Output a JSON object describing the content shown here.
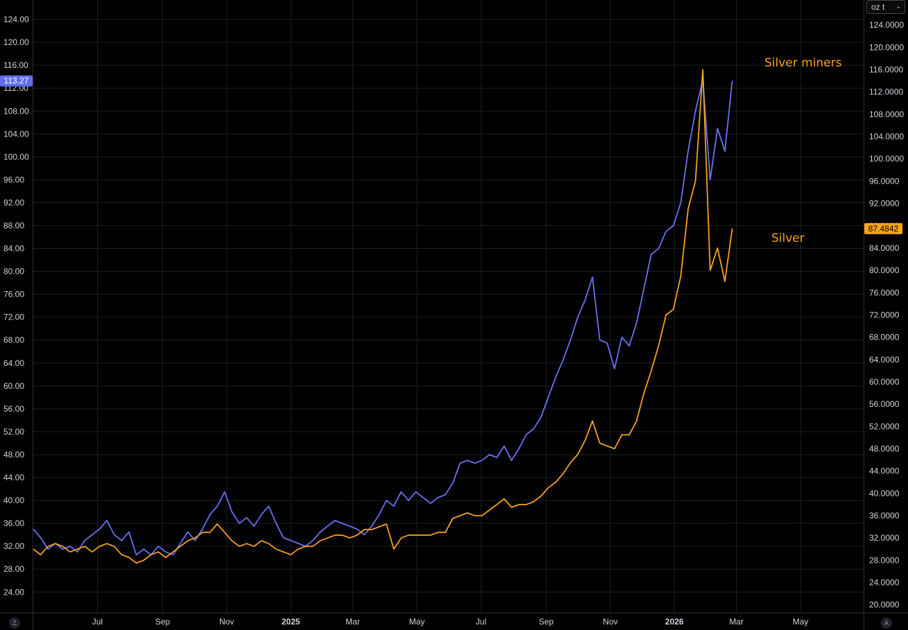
{
  "ui": {
    "unit_select_value": "oz t",
    "left_corner_label": "Z",
    "right_corner_label": "A",
    "chevron_icon": "chevron-down-icon"
  },
  "colors": {
    "background": "#000000",
    "grid": "#1c1f26",
    "miners": "#6872f2",
    "silver": "#f7a21b",
    "miners_price_badge": "#5f6ef0",
    "silver_price_badge": "#f7a21b"
  },
  "chart_data": {
    "type": "line",
    "annotations": [
      {
        "text": "Silver miners",
        "series": "miners"
      },
      {
        "text": "Silver",
        "series": "silver"
      }
    ],
    "left_axis": {
      "ticks": [
        "124.00",
        "120.00",
        "116.00",
        "112.00",
        "108.00",
        "104.00",
        "100.00",
        "96.00",
        "92.00",
        "88.00",
        "84.00",
        "80.00",
        "76.00",
        "72.00",
        "68.00",
        "64.00",
        "60.00",
        "56.00",
        "52.00",
        "48.00",
        "44.00",
        "40.00",
        "36.00",
        "32.00",
        "28.00",
        "24.00"
      ],
      "ylim": [
        20.4,
        127.4
      ],
      "last_value_label": "113.27"
    },
    "right_axis": {
      "ticks": [
        "124.0000",
        "120.0000",
        "116.0000",
        "112.0000",
        "108.0000",
        "104.0000",
        "100.0000",
        "96.0000",
        "92.0000",
        "88.0000",
        "84.0000",
        "80.0000",
        "76.0000",
        "72.0000",
        "68.0000",
        "64.0000",
        "60.0000",
        "56.0000",
        "52.0000",
        "48.0000",
        "44.0000",
        "40.0000",
        "36.0000",
        "32.0000",
        "28.0000",
        "24.0000",
        "20.0000"
      ],
      "ylim": [
        18.6,
        128.5
      ],
      "last_value_label": "87.4842"
    },
    "x_axis": {
      "range": [
        "2024-05-01",
        "2026-06-30"
      ],
      "ticks": [
        {
          "label": "Jul",
          "date": "2024-07-01",
          "bold": false
        },
        {
          "label": "Sep",
          "date": "2024-09-01",
          "bold": false
        },
        {
          "label": "Nov",
          "date": "2024-11-01",
          "bold": false
        },
        {
          "label": "2025",
          "date": "2025-01-01",
          "bold": true
        },
        {
          "label": "Mar",
          "date": "2025-03-01",
          "bold": false
        },
        {
          "label": "May",
          "date": "2025-05-01",
          "bold": false
        },
        {
          "label": "Jul",
          "date": "2025-07-01",
          "bold": false
        },
        {
          "label": "Sep",
          "date": "2025-09-01",
          "bold": false
        },
        {
          "label": "Nov",
          "date": "2025-11-01",
          "bold": false
        },
        {
          "label": "2026",
          "date": "2026-01-01",
          "bold": true
        },
        {
          "label": "Mar",
          "date": "2026-03-01",
          "bold": false
        },
        {
          "label": "May",
          "date": "2026-05-01",
          "bold": false
        }
      ]
    },
    "series": [
      {
        "key": "miners",
        "axis": "left",
        "points": [
          [
            "2024-05-01",
            35.0
          ],
          [
            "2024-05-08",
            33.5
          ],
          [
            "2024-05-15",
            31.5
          ],
          [
            "2024-05-22",
            32.5
          ],
          [
            "2024-05-29",
            31.5
          ],
          [
            "2024-06-05",
            32.0
          ],
          [
            "2024-06-12",
            31.0
          ],
          [
            "2024-06-19",
            33.0
          ],
          [
            "2024-06-26",
            34.0
          ],
          [
            "2024-07-03",
            35.0
          ],
          [
            "2024-07-10",
            36.5
          ],
          [
            "2024-07-17",
            34.0
          ],
          [
            "2024-07-24",
            33.0
          ],
          [
            "2024-07-31",
            34.5
          ],
          [
            "2024-08-07",
            30.5
          ],
          [
            "2024-08-14",
            31.5
          ],
          [
            "2024-08-21",
            30.5
          ],
          [
            "2024-08-28",
            32.0
          ],
          [
            "2024-09-04",
            31.0
          ],
          [
            "2024-09-11",
            30.5
          ],
          [
            "2024-09-18",
            32.5
          ],
          [
            "2024-09-25",
            34.5
          ],
          [
            "2024-10-02",
            33.0
          ],
          [
            "2024-10-09",
            35.0
          ],
          [
            "2024-10-16",
            37.5
          ],
          [
            "2024-10-23",
            39.0
          ],
          [
            "2024-10-30",
            41.5
          ],
          [
            "2024-11-06",
            38.0
          ],
          [
            "2024-11-13",
            36.0
          ],
          [
            "2024-11-20",
            37.0
          ],
          [
            "2024-11-27",
            35.5
          ],
          [
            "2024-12-04",
            37.5
          ],
          [
            "2024-12-11",
            39.0
          ],
          [
            "2024-12-18",
            36.0
          ],
          [
            "2024-12-25",
            33.5
          ],
          [
            "2025-01-01",
            33.0
          ],
          [
            "2025-01-08",
            32.5
          ],
          [
            "2025-01-15",
            32.0
          ],
          [
            "2025-01-22",
            33.0
          ],
          [
            "2025-01-29",
            34.5
          ],
          [
            "2025-02-05",
            35.5
          ],
          [
            "2025-02-12",
            36.5
          ],
          [
            "2025-02-19",
            36.0
          ],
          [
            "2025-02-26",
            35.5
          ],
          [
            "2025-03-05",
            35.0
          ],
          [
            "2025-03-12",
            34.0
          ],
          [
            "2025-03-19",
            35.5
          ],
          [
            "2025-03-26",
            37.5
          ],
          [
            "2025-04-02",
            40.0
          ],
          [
            "2025-04-09",
            39.0
          ],
          [
            "2025-04-16",
            41.5
          ],
          [
            "2025-04-23",
            40.0
          ],
          [
            "2025-04-30",
            41.5
          ],
          [
            "2025-05-07",
            40.5
          ],
          [
            "2025-05-14",
            39.5
          ],
          [
            "2025-05-21",
            40.5
          ],
          [
            "2025-05-28",
            41.0
          ],
          [
            "2025-06-04",
            43.0
          ],
          [
            "2025-06-11",
            46.5
          ],
          [
            "2025-06-18",
            47.0
          ],
          [
            "2025-06-25",
            46.5
          ],
          [
            "2025-07-02",
            47.0
          ],
          [
            "2025-07-09",
            48.0
          ],
          [
            "2025-07-16",
            47.5
          ],
          [
            "2025-07-23",
            49.5
          ],
          [
            "2025-07-30",
            47.0
          ],
          [
            "2025-08-06",
            49.0
          ],
          [
            "2025-08-13",
            51.5
          ],
          [
            "2025-08-20",
            52.5
          ],
          [
            "2025-08-27",
            54.5
          ],
          [
            "2025-09-03",
            58.0
          ],
          [
            "2025-09-10",
            61.5
          ],
          [
            "2025-09-17",
            64.5
          ],
          [
            "2025-09-24",
            68.0
          ],
          [
            "2025-10-01",
            72.0
          ],
          [
            "2025-10-08",
            75.0
          ],
          [
            "2025-10-15",
            79.0
          ],
          [
            "2025-10-22",
            68.0
          ],
          [
            "2025-10-29",
            67.5
          ],
          [
            "2025-11-05",
            63.0
          ],
          [
            "2025-11-12",
            68.5
          ],
          [
            "2025-11-19",
            67.0
          ],
          [
            "2025-11-26",
            71.0
          ],
          [
            "2025-12-03",
            77.0
          ],
          [
            "2025-12-10",
            83.0
          ],
          [
            "2025-12-17",
            84.0
          ],
          [
            "2025-12-24",
            87.0
          ],
          [
            "2025-12-31",
            88.0
          ],
          [
            "2026-01-07",
            92.0
          ],
          [
            "2026-01-14",
            101.0
          ],
          [
            "2026-01-21",
            108.0
          ],
          [
            "2026-01-28",
            113.5
          ],
          [
            "2026-02-04",
            96.0
          ],
          [
            "2026-02-11",
            105.0
          ],
          [
            "2026-02-18",
            101.0
          ],
          [
            "2026-02-25",
            113.27
          ]
        ]
      },
      {
        "key": "silver",
        "axis": "right",
        "points": [
          [
            "2024-05-01",
            30.0
          ],
          [
            "2024-05-08",
            29.0
          ],
          [
            "2024-05-15",
            30.5
          ],
          [
            "2024-05-22",
            31.0
          ],
          [
            "2024-05-29",
            30.5
          ],
          [
            "2024-06-05",
            29.5
          ],
          [
            "2024-06-12",
            30.0
          ],
          [
            "2024-06-19",
            30.5
          ],
          [
            "2024-06-26",
            29.5
          ],
          [
            "2024-07-03",
            30.5
          ],
          [
            "2024-07-10",
            31.0
          ],
          [
            "2024-07-17",
            30.5
          ],
          [
            "2024-07-24",
            29.0
          ],
          [
            "2024-07-31",
            28.5
          ],
          [
            "2024-08-07",
            27.5
          ],
          [
            "2024-08-14",
            28.0
          ],
          [
            "2024-08-21",
            29.0
          ],
          [
            "2024-08-28",
            29.5
          ],
          [
            "2024-09-04",
            28.5
          ],
          [
            "2024-09-11",
            29.5
          ],
          [
            "2024-09-18",
            30.5
          ],
          [
            "2024-09-25",
            31.5
          ],
          [
            "2024-10-02",
            32.0
          ],
          [
            "2024-10-09",
            33.0
          ],
          [
            "2024-10-16",
            33.0
          ],
          [
            "2024-10-23",
            34.5
          ],
          [
            "2024-10-30",
            33.0
          ],
          [
            "2024-11-06",
            31.5
          ],
          [
            "2024-11-13",
            30.5
          ],
          [
            "2024-11-20",
            31.0
          ],
          [
            "2024-11-27",
            30.5
          ],
          [
            "2024-12-04",
            31.5
          ],
          [
            "2024-12-11",
            31.0
          ],
          [
            "2024-12-18",
            30.0
          ],
          [
            "2024-12-25",
            29.5
          ],
          [
            "2025-01-01",
            29.0
          ],
          [
            "2025-01-08",
            30.0
          ],
          [
            "2025-01-15",
            30.5
          ],
          [
            "2025-01-22",
            30.5
          ],
          [
            "2025-01-29",
            31.5
          ],
          [
            "2025-02-05",
            32.0
          ],
          [
            "2025-02-12",
            32.5
          ],
          [
            "2025-02-19",
            32.5
          ],
          [
            "2025-02-26",
            32.0
          ],
          [
            "2025-03-05",
            32.5
          ],
          [
            "2025-03-12",
            33.5
          ],
          [
            "2025-03-19",
            33.5
          ],
          [
            "2025-03-26",
            34.0
          ],
          [
            "2025-04-02",
            34.5
          ],
          [
            "2025-04-09",
            30.0
          ],
          [
            "2025-04-16",
            32.0
          ],
          [
            "2025-04-23",
            32.5
          ],
          [
            "2025-04-30",
            32.5
          ],
          [
            "2025-05-07",
            32.5
          ],
          [
            "2025-05-14",
            32.5
          ],
          [
            "2025-05-21",
            33.0
          ],
          [
            "2025-05-28",
            33.0
          ],
          [
            "2025-06-04",
            35.5
          ],
          [
            "2025-06-11",
            36.0
          ],
          [
            "2025-06-18",
            36.5
          ],
          [
            "2025-06-25",
            36.0
          ],
          [
            "2025-07-02",
            36.0
          ],
          [
            "2025-07-09",
            37.0
          ],
          [
            "2025-07-16",
            38.0
          ],
          [
            "2025-07-23",
            39.0
          ],
          [
            "2025-07-30",
            37.5
          ],
          [
            "2025-08-06",
            38.0
          ],
          [
            "2025-08-13",
            38.0
          ],
          [
            "2025-08-20",
            38.5
          ],
          [
            "2025-08-27",
            39.5
          ],
          [
            "2025-09-03",
            41.0
          ],
          [
            "2025-09-10",
            42.0
          ],
          [
            "2025-09-17",
            43.5
          ],
          [
            "2025-09-24",
            45.5
          ],
          [
            "2025-10-01",
            47.0
          ],
          [
            "2025-10-08",
            49.5
          ],
          [
            "2025-10-15",
            53.0
          ],
          [
            "2025-10-22",
            49.0
          ],
          [
            "2025-10-29",
            48.5
          ],
          [
            "2025-11-05",
            48.0
          ],
          [
            "2025-11-12",
            50.5
          ],
          [
            "2025-11-19",
            50.5
          ],
          [
            "2025-11-26",
            53.0
          ],
          [
            "2025-12-03",
            58.0
          ],
          [
            "2025-12-10",
            62.0
          ],
          [
            "2025-12-17",
            66.5
          ],
          [
            "2025-12-24",
            72.0
          ],
          [
            "2025-12-31",
            73.0
          ],
          [
            "2026-01-07",
            79.0
          ],
          [
            "2026-01-14",
            91.0
          ],
          [
            "2026-01-21",
            96.0
          ],
          [
            "2026-01-28",
            116.0
          ],
          [
            "2026-02-04",
            80.0
          ],
          [
            "2026-02-11",
            84.0
          ],
          [
            "2026-02-18",
            78.0
          ],
          [
            "2026-02-25",
            87.4842
          ]
        ]
      }
    ]
  }
}
